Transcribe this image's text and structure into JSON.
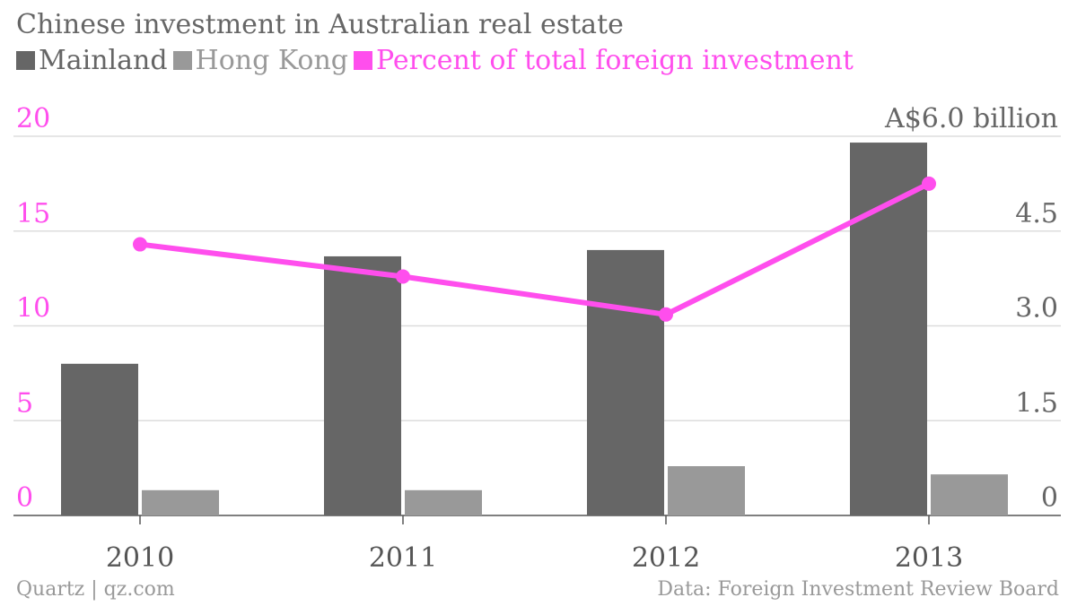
{
  "chart_data": {
    "type": "bar",
    "title": "Chinese investment in Australian real estate",
    "categories": [
      "2010",
      "2011",
      "2012",
      "2013"
    ],
    "series": [
      {
        "name": "Mainland",
        "kind": "bar",
        "axis": "right",
        "color": "#666666",
        "values": [
          2.4,
          4.1,
          4.2,
          5.9
        ]
      },
      {
        "name": "Hong Kong",
        "kind": "bar",
        "axis": "right",
        "color": "#999999",
        "values": [
          0.4,
          0.4,
          0.78,
          0.65
        ]
      },
      {
        "name": "Percent of total foreign investment",
        "kind": "line",
        "axis": "left",
        "color": "#ff4eed",
        "values": [
          14.3,
          12.6,
          10.6,
          17.5
        ]
      }
    ],
    "left_axis": {
      "ylim": [
        0,
        20
      ],
      "ticks": [
        "0",
        "5",
        "10",
        "15",
        "20"
      ],
      "color": "#ff4eed"
    },
    "right_axis": {
      "ylim": [
        0,
        6
      ],
      "ticks": [
        "0",
        "1.5",
        "3.0",
        "4.5",
        "A$6.0 billion"
      ],
      "color": "#666666"
    },
    "grid": true,
    "legend_position": "top-left"
  },
  "footer": {
    "source_left": "Quartz | qz.com",
    "source_right": "Data: Foreign Investment Review Board"
  }
}
